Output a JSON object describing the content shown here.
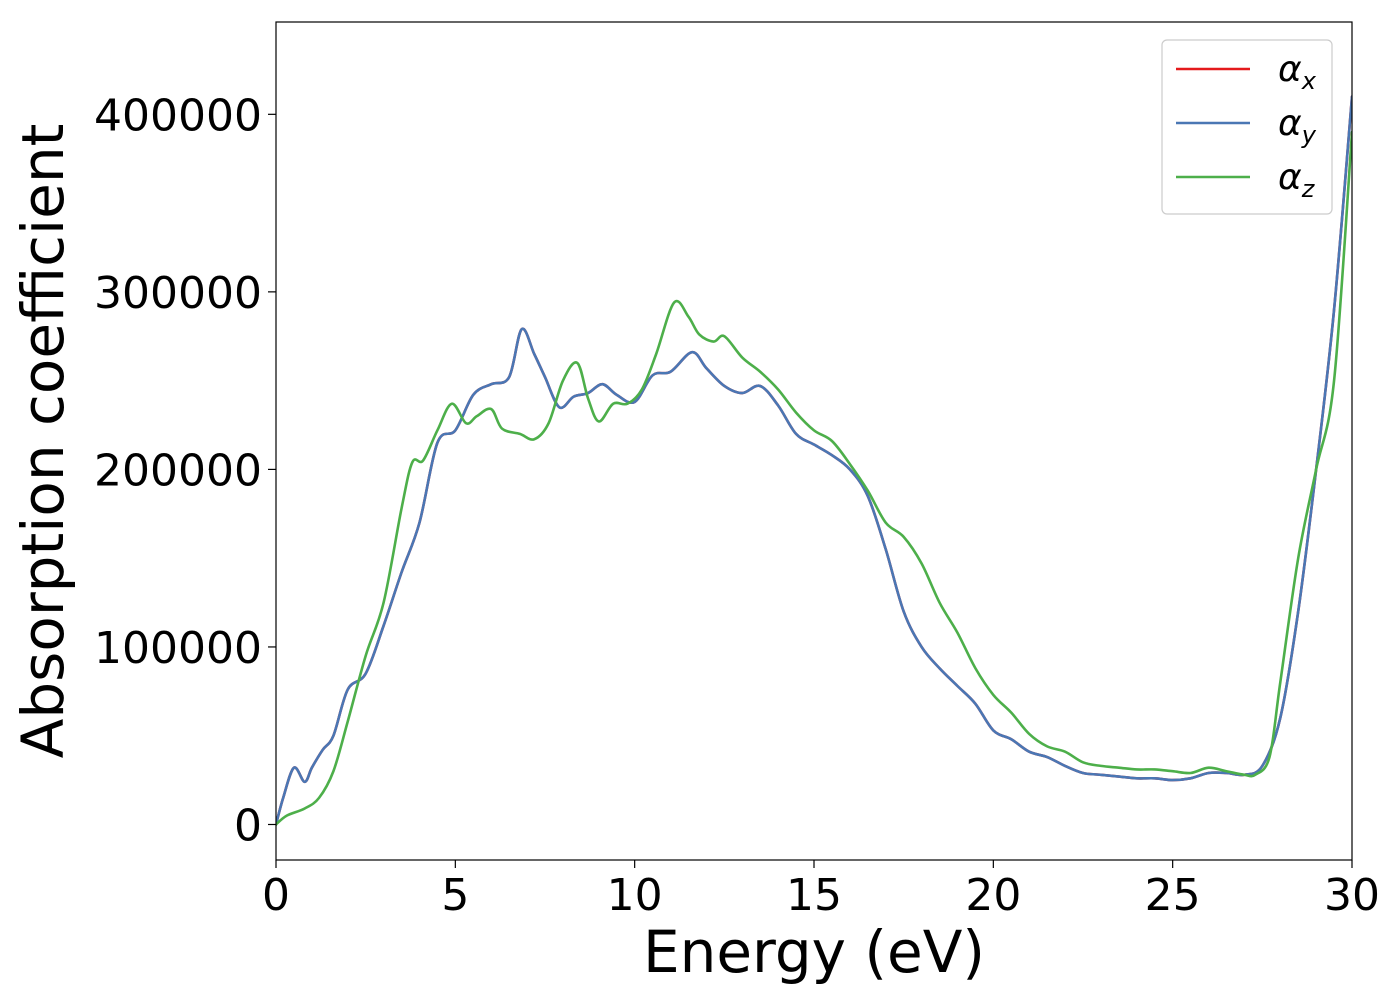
{
  "chart_data": {
    "type": "line",
    "title": "",
    "xlabel": "Energy (eV)",
    "ylabel": "Absorption coefficient",
    "xlim": [
      0,
      30
    ],
    "ylim": [
      -20000,
      452000
    ],
    "xticks": [
      "0",
      "5",
      "10",
      "15",
      "20",
      "25",
      "30"
    ],
    "yticks": [
      "0",
      "100000",
      "200000",
      "300000",
      "400000"
    ],
    "grid": false,
    "legend_position": "top-right",
    "series": [
      {
        "name": "α_x",
        "legend_base": "α",
        "legend_sub": "x",
        "color": "#e41a1c",
        "x": [
          0,
          0.2,
          0.5,
          0.8,
          1.0,
          1.3,
          1.6,
          2.0,
          2.5,
          3.0,
          3.5,
          4.0,
          4.5,
          5.0,
          5.5,
          6.0,
          6.5,
          6.85,
          7.2,
          7.5,
          7.9,
          8.3,
          8.7,
          9.1,
          9.5,
          10.0,
          10.5,
          11.0,
          11.6,
          12.0,
          12.5,
          13.0,
          13.5,
          14.0,
          14.5,
          15.0,
          15.5,
          16.0,
          16.5,
          17.0,
          17.5,
          18.0,
          18.5,
          19.0,
          19.5,
          20.0,
          20.5,
          21.0,
          21.5,
          22.0,
          22.5,
          23.0,
          23.5,
          24.0,
          24.5,
          25.0,
          25.5,
          26.0,
          26.5,
          27.0,
          27.5,
          28.0,
          28.5,
          29.0,
          29.5,
          30.0
        ],
        "y": [
          0,
          15000,
          32000,
          24000,
          32000,
          42000,
          50000,
          76000,
          85000,
          112000,
          142000,
          170000,
          215000,
          222000,
          242000,
          248000,
          252000,
          279000,
          265000,
          252000,
          235000,
          241000,
          243000,
          248000,
          242000,
          238000,
          253000,
          255000,
          266000,
          257000,
          247000,
          243000,
          247000,
          236000,
          220000,
          214000,
          208000,
          200000,
          185000,
          155000,
          120000,
          100000,
          88000,
          78000,
          68000,
          53000,
          48000,
          41000,
          38000,
          33000,
          29000,
          28000,
          27000,
          26000,
          26000,
          25000,
          26000,
          29000,
          29000,
          28000,
          33000,
          60000,
          120000,
          200000,
          290000,
          410000
        ]
      },
      {
        "name": "α_y",
        "legend_base": "α",
        "legend_sub": "y",
        "color": "#4a77b4",
        "x": [
          0,
          0.2,
          0.5,
          0.8,
          1.0,
          1.3,
          1.6,
          2.0,
          2.5,
          3.0,
          3.5,
          4.0,
          4.5,
          5.0,
          5.5,
          6.0,
          6.5,
          6.85,
          7.2,
          7.5,
          7.9,
          8.3,
          8.7,
          9.1,
          9.5,
          10.0,
          10.5,
          11.0,
          11.6,
          12.0,
          12.5,
          13.0,
          13.5,
          14.0,
          14.5,
          15.0,
          15.5,
          16.0,
          16.5,
          17.0,
          17.5,
          18.0,
          18.5,
          19.0,
          19.5,
          20.0,
          20.5,
          21.0,
          21.5,
          22.0,
          22.5,
          23.0,
          23.5,
          24.0,
          24.5,
          25.0,
          25.5,
          26.0,
          26.5,
          27.0,
          27.5,
          28.0,
          28.5,
          29.0,
          29.5,
          30.0
        ],
        "y": [
          0,
          15000,
          32000,
          24000,
          32000,
          42000,
          50000,
          76000,
          85000,
          112000,
          142000,
          170000,
          215000,
          222000,
          242000,
          248000,
          252000,
          279000,
          265000,
          252000,
          235000,
          241000,
          243000,
          248000,
          242000,
          238000,
          253000,
          255000,
          266000,
          257000,
          247000,
          243000,
          247000,
          236000,
          220000,
          214000,
          208000,
          200000,
          185000,
          155000,
          120000,
          100000,
          88000,
          78000,
          68000,
          53000,
          48000,
          41000,
          38000,
          33000,
          29000,
          28000,
          27000,
          26000,
          26000,
          25000,
          26000,
          29000,
          29000,
          28000,
          33000,
          60000,
          120000,
          200000,
          290000,
          410000
        ]
      },
      {
        "name": "α_z",
        "legend_base": "α",
        "legend_sub": "z",
        "color": "#4daf4a",
        "x": [
          0,
          0.3,
          0.8,
          1.2,
          1.6,
          2.0,
          2.5,
          3.0,
          3.5,
          3.8,
          4.1,
          4.5,
          4.9,
          5.3,
          5.6,
          6.0,
          6.3,
          6.8,
          7.2,
          7.6,
          8.0,
          8.4,
          8.7,
          9.0,
          9.4,
          9.8,
          10.2,
          10.6,
          11.1,
          11.5,
          11.8,
          12.2,
          12.5,
          13.0,
          13.5,
          14.0,
          14.5,
          15.0,
          15.5,
          16.0,
          16.5,
          17.0,
          17.5,
          18.0,
          18.5,
          19.0,
          19.5,
          20.0,
          20.5,
          21.0,
          21.5,
          22.0,
          22.5,
          23.0,
          23.5,
          24.0,
          24.5,
          25.0,
          25.5,
          26.0,
          26.5,
          27.0,
          27.3,
          27.7,
          28.0,
          28.5,
          29.0,
          29.5,
          30.0
        ],
        "y": [
          0,
          5000,
          9000,
          15000,
          30000,
          58000,
          95000,
          125000,
          178000,
          204000,
          205000,
          222000,
          237000,
          226000,
          230000,
          234000,
          223000,
          220000,
          217000,
          226000,
          250000,
          260000,
          240000,
          227000,
          237000,
          237000,
          245000,
          265000,
          294000,
          286000,
          276000,
          272000,
          275000,
          263000,
          255000,
          245000,
          232000,
          222000,
          216000,
          203000,
          188000,
          170000,
          162000,
          147000,
          125000,
          108000,
          88000,
          73000,
          63000,
          51000,
          44000,
          41000,
          35000,
          33000,
          32000,
          31000,
          31000,
          30000,
          29000,
          32000,
          30000,
          28000,
          28000,
          38000,
          80000,
          150000,
          200000,
          250000,
          390000
        ]
      }
    ]
  }
}
